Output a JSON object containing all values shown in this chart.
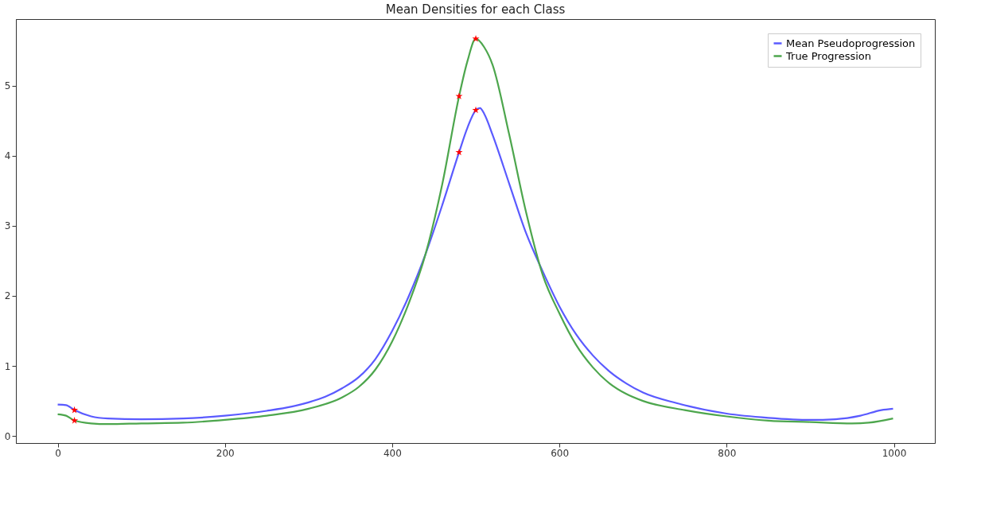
{
  "chart_data": {
    "type": "line",
    "title": "Mean Densities for each Class",
    "xlim": [
      -50,
      1049
    ],
    "ylim": [
      -0.1,
      5.95
    ],
    "xticks": [
      0,
      200,
      400,
      600,
      800,
      1000
    ],
    "yticks": [
      0,
      1,
      2,
      3,
      4,
      5
    ],
    "grid": false,
    "legend": "top right",
    "line_style": "solid",
    "series": [
      {
        "name": "Mean Pseudoprogression",
        "color": "#5a5aff",
        "x": [
          0,
          10,
          20,
          40,
          60,
          100,
          150,
          200,
          250,
          280,
          300,
          320,
          340,
          360,
          380,
          400,
          420,
          440,
          460,
          480,
          490,
          500,
          505,
          510,
          520,
          540,
          560,
          580,
          600,
          620,
          640,
          660,
          680,
          700,
          740,
          800,
          850,
          900,
          930,
          960,
          985,
          999
        ],
        "values": [
          0.45,
          0.44,
          0.37,
          0.28,
          0.25,
          0.24,
          0.25,
          0.29,
          0.36,
          0.42,
          0.48,
          0.56,
          0.68,
          0.84,
          1.1,
          1.5,
          2.0,
          2.6,
          3.3,
          4.05,
          4.4,
          4.65,
          4.68,
          4.6,
          4.3,
          3.6,
          2.9,
          2.35,
          1.85,
          1.45,
          1.15,
          0.92,
          0.75,
          0.62,
          0.47,
          0.32,
          0.26,
          0.23,
          0.24,
          0.29,
          0.37,
          0.39
        ]
      },
      {
        "name": "True Progression",
        "color": "#4da64d",
        "x": [
          0,
          10,
          20,
          40,
          60,
          100,
          150,
          200,
          250,
          300,
          340,
          360,
          380,
          400,
          420,
          440,
          460,
          480,
          490,
          500,
          510,
          520,
          540,
          560,
          580,
          600,
          620,
          640,
          660,
          680,
          700,
          750,
          800,
          850,
          900,
          950,
          970,
          999
        ],
        "values": [
          0.31,
          0.29,
          0.22,
          0.18,
          0.17,
          0.18,
          0.19,
          0.23,
          0.29,
          0.39,
          0.55,
          0.7,
          0.95,
          1.35,
          1.9,
          2.6,
          3.6,
          4.85,
          5.35,
          5.67,
          5.55,
          5.3,
          4.3,
          3.2,
          2.3,
          1.75,
          1.3,
          0.98,
          0.75,
          0.6,
          0.5,
          0.37,
          0.28,
          0.22,
          0.2,
          0.18,
          0.19,
          0.25
        ]
      },
      {
        "type": "scatter",
        "marker": "star",
        "color": "#ff0000",
        "x": [
          20,
          480,
          500,
          20,
          480,
          500
        ],
        "values": [
          0.37,
          4.05,
          4.65,
          0.22,
          4.85,
          5.67
        ]
      }
    ]
  }
}
